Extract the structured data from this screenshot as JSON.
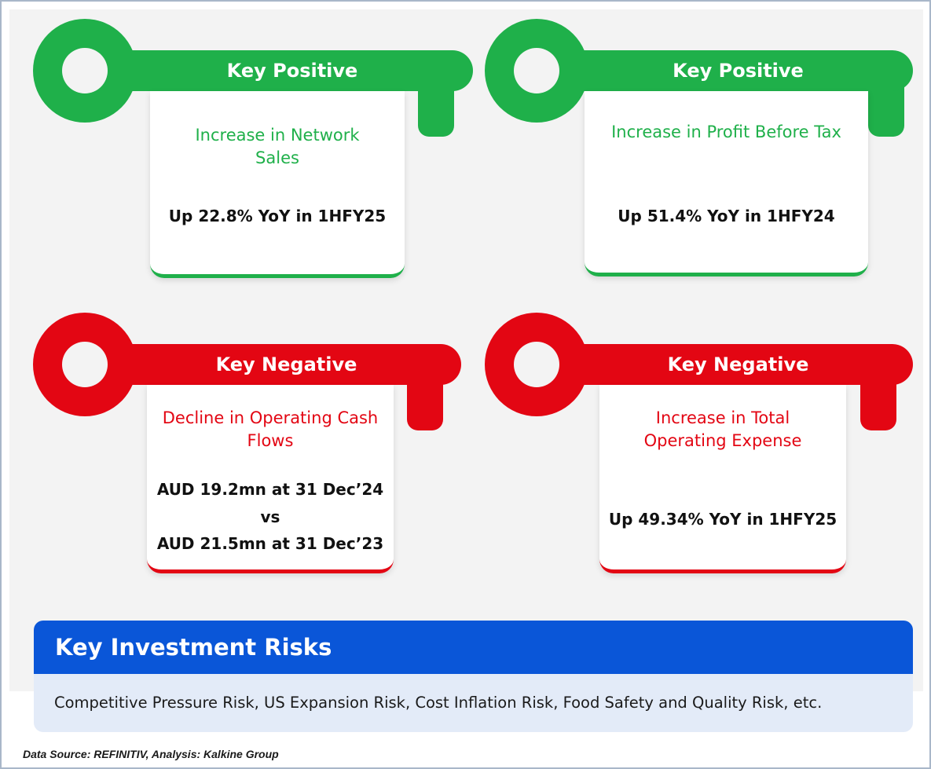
{
  "colors": {
    "positive": "#1fb04a",
    "negative": "#e30613",
    "risk_header": "#0a56d8",
    "risk_body": "#e3ebf8",
    "panel": "#f3f3f3"
  },
  "cards": [
    {
      "label": "Key Positive",
      "heading": "Increase in Network Sales",
      "value": "Up 22.8% YoY in 1HFY25"
    },
    {
      "label": "Key Positive",
      "heading": "Increase in Profit Before Tax",
      "value": "Up 51.4% YoY in 1HFY24"
    },
    {
      "label": "Key Negative",
      "heading": "Decline in Operating Cash Flows",
      "value_lines": [
        "AUD 19.2mn at 31 Dec’24",
        "vs",
        "AUD 21.5mn at 31 Dec’23"
      ]
    },
    {
      "label": "Key Negative",
      "heading": "Increase in Total Operating Expense",
      "value": "Up 49.34% YoY in 1HFY25"
    }
  ],
  "risks": {
    "title": "Key Investment Risks",
    "body": "Competitive Pressure Risk, US Expansion Risk, Cost Inflation Risk, Food Safety and Quality Risk, etc."
  },
  "source": "Data Source: REFINITIV, Analysis: Kalkine Group"
}
